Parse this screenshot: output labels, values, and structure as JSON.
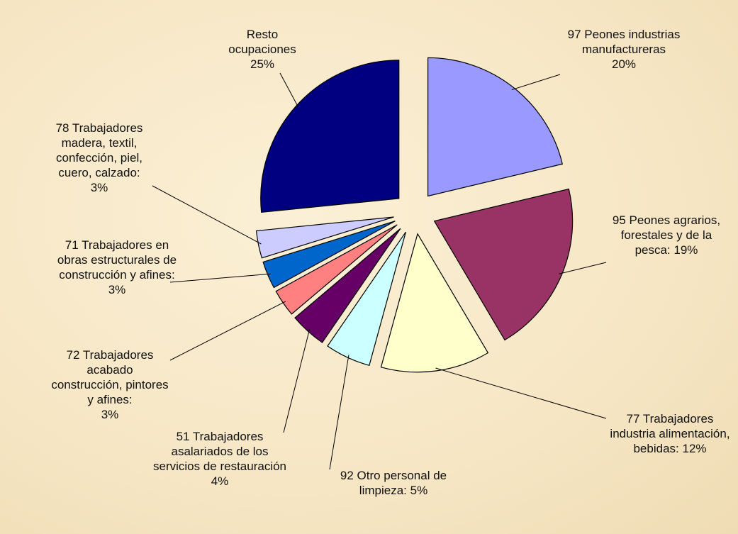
{
  "chart_data": {
    "type": "pie",
    "categories": [
      "97 Peones industrias manufactureras",
      "95 Peones agrarios, forestales y de la pesca:",
      "77 Trabajadores industria alimentación, bebidas:",
      "92 Otro personal de limpieza:",
      "51 Trabajadores asalariados de los servicios de restauración",
      "72 Trabajadores acabado construcción, pintores y afines:",
      "71 Trabajadores en obras estructurales de construcción y afines:",
      "78 Trabajadores madera, textil, confección, piel, cuero, calzado:",
      "Resto ocupaciones"
    ],
    "values": [
      20,
      19,
      12,
      5,
      4,
      3,
      3,
      3,
      25
    ],
    "value_labels": [
      "20%",
      "19%",
      "12%",
      "5%",
      "4%",
      "3%",
      "3%",
      "3%",
      "25%"
    ],
    "colors": [
      "#9999ff",
      "#993366",
      "#ffffcc",
      "#ccffff",
      "#660066",
      "#ff8080",
      "#0066cc",
      "#ccccff",
      "#000080"
    ]
  }
}
